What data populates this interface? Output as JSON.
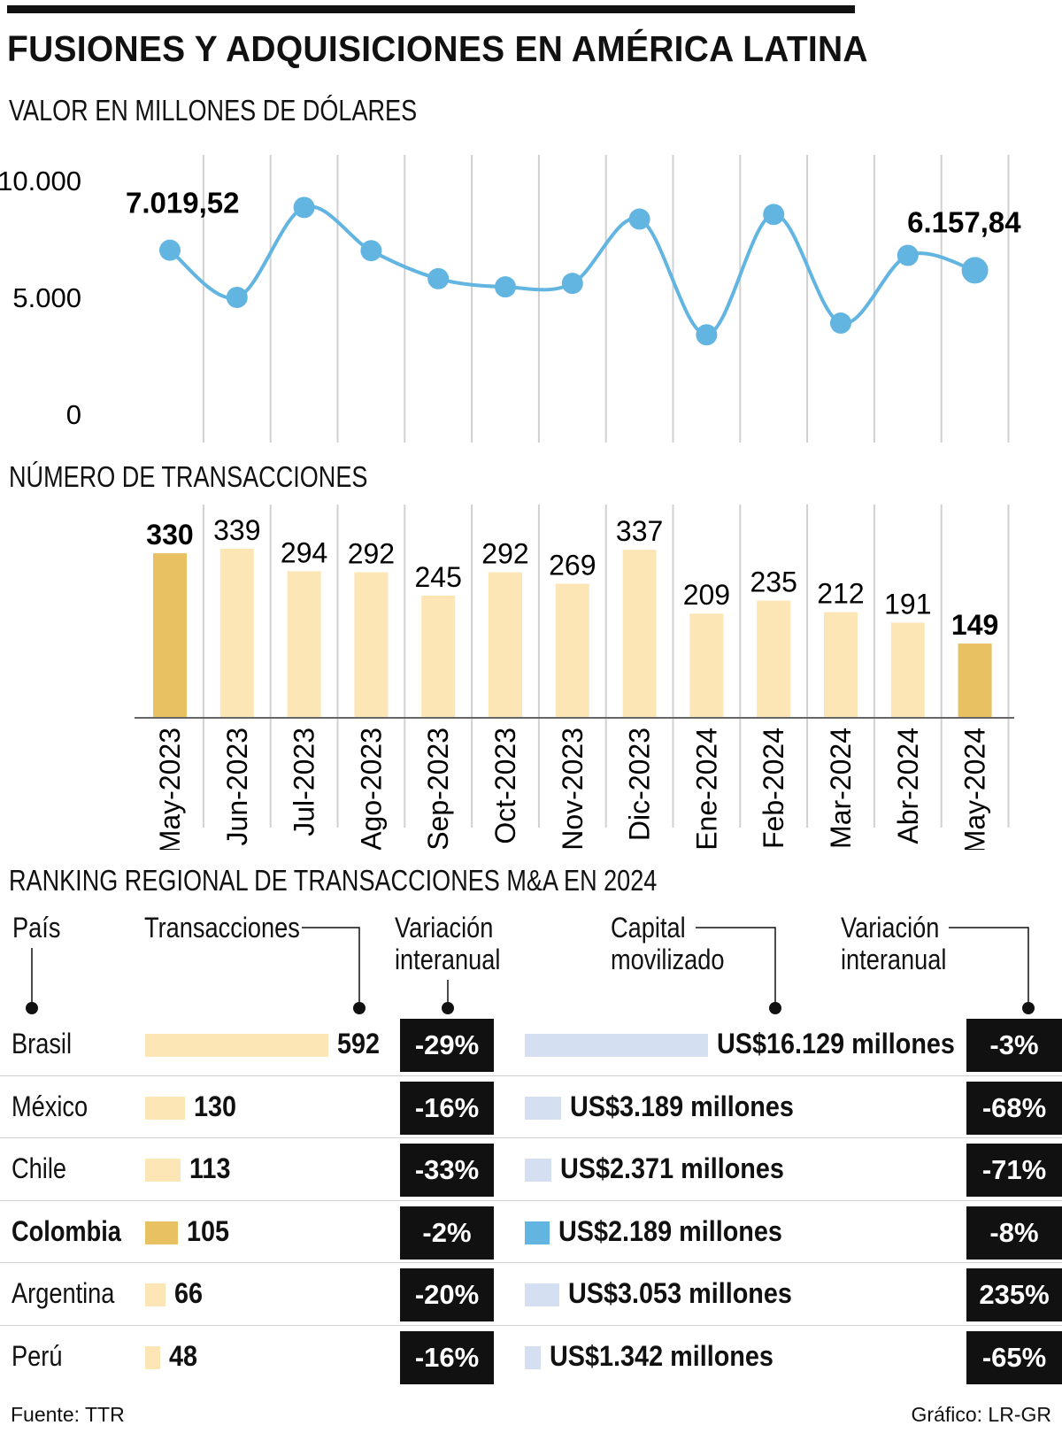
{
  "title": "FUSIONES Y ADQUISICIONES EN AMÉRICA LATINA",
  "colors": {
    "line": "#62b4e1",
    "bar_light": "#fde6b6",
    "bar_highlight": "#e8c163",
    "cap_light": "#d4dff2",
    "cap_highlight": "#62b4e1",
    "badge": "#111111"
  },
  "chart_data": [
    {
      "type": "line",
      "title": "VALOR EN MILLONES DE DÓLARES",
      "categories": [
        "May-2023",
        "Jun-2023",
        "Jul-2023",
        "Ago-2023",
        "Sep-2023",
        "Oct-2023",
        "Nov-2023",
        "Dic-2023",
        "Ene-2024",
        "Feb-2024",
        "Mar-2024",
        "Abr-2024",
        "May-2024"
      ],
      "values": [
        7019.52,
        5000,
        8850,
        7000,
        5800,
        5450,
        5600,
        8350,
        3400,
        8550,
        3900,
        6800,
        6157.84
      ],
      "yticks": [
        "10.000",
        "5.000",
        "0"
      ],
      "ylim": [
        0,
        10000
      ],
      "data_labels": {
        "first": "7.019,52",
        "last": "6.157,84"
      },
      "grid": "vertical"
    },
    {
      "type": "bar",
      "title": "NÚMERO DE TRANSACCIONES",
      "categories": [
        "May-2023",
        "Jun-2023",
        "Jul-2023",
        "Ago-2023",
        "Sep-2023",
        "Oct-2023",
        "Nov-2023",
        "Dic-2023",
        "Ene-2024",
        "Feb-2024",
        "Mar-2024",
        "Abr-2024",
        "May-2024"
      ],
      "values": [
        330,
        339,
        294,
        292,
        245,
        292,
        269,
        337,
        209,
        235,
        212,
        191,
        149
      ],
      "highlight": [
        0,
        12
      ]
    },
    {
      "type": "table",
      "title": "RANKING REGIONAL DE TRANSACCIONES M&A EN 2024",
      "headers": {
        "country": "País",
        "transactions": "Transacciones",
        "var1": "Variación interanual",
        "capital": "Capital movilizado",
        "var2": "Variación interanual"
      },
      "rows": [
        {
          "country": "Brasil",
          "transactions": 592,
          "var1": "-29%",
          "capital_value": 16129,
          "capital": "US$16.129 millones",
          "var2": "-3%",
          "highlight": false
        },
        {
          "country": "México",
          "transactions": 130,
          "var1": "-16%",
          "capital_value": 3189,
          "capital": "US$3.189 millones",
          "var2": "-68%",
          "highlight": false
        },
        {
          "country": "Chile",
          "transactions": 113,
          "var1": "-33%",
          "capital_value": 2371,
          "capital": "US$2.371 millones",
          "var2": "-71%",
          "highlight": false
        },
        {
          "country": "Colombia",
          "transactions": 105,
          "var1": "-2%",
          "capital_value": 2189,
          "capital": "US$2.189 millones",
          "var2": "-8%",
          "highlight": true
        },
        {
          "country": "Argentina",
          "transactions": 66,
          "var1": "-20%",
          "capital_value": 3053,
          "capital": "US$3.053 millones",
          "var2": "235%",
          "highlight": false
        },
        {
          "country": "Perú",
          "transactions": 48,
          "var1": "-16%",
          "capital_value": 1342,
          "capital": "US$1.342 millones",
          "var2": "-65%",
          "highlight": false
        }
      ]
    }
  ],
  "footer": {
    "source": "Fuente: TTR",
    "credit": "Gráfico: LR-GR"
  }
}
